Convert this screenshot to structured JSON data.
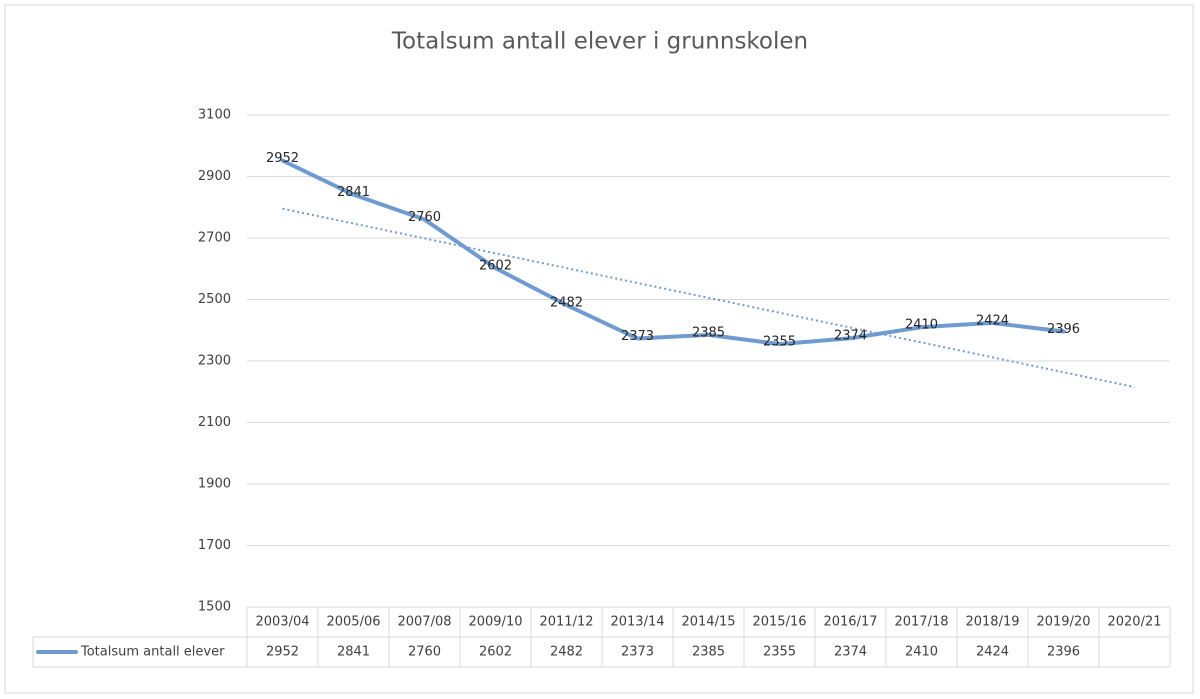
{
  "chart_data": {
    "type": "line",
    "title": "Totalsum antall elever i grunnskolen",
    "categories": [
      "2003/04",
      "2005/06",
      "2007/08",
      "2009/10",
      "2011/12",
      "2013/14",
      "2014/15",
      "2015/16",
      "2016/17",
      "2017/18",
      "2018/19",
      "2019/20",
      "2020/21"
    ],
    "series": [
      {
        "name": "Totalsum antall elever",
        "color": "#6f9bd1",
        "values": [
          2952,
          2841,
          2760,
          2602,
          2482,
          2373,
          2385,
          2355,
          2374,
          2410,
          2424,
          2396,
          null
        ]
      }
    ],
    "ylim": [
      1500,
      3100
    ],
    "yticks": [
      1500,
      1700,
      1900,
      2100,
      2300,
      2500,
      2700,
      2900,
      3100
    ],
    "grid": true,
    "data_labels": true,
    "trendline": "linear",
    "data_table": true
  }
}
